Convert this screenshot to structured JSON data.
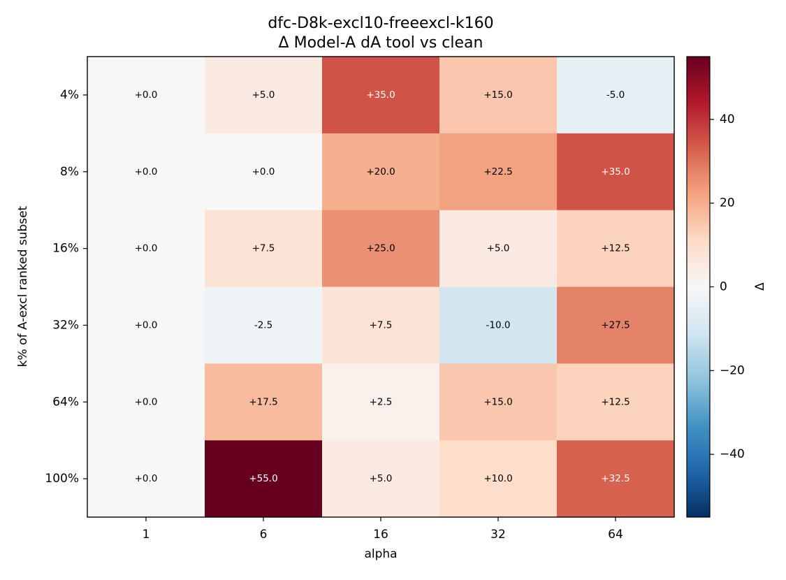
{
  "chart_data": {
    "type": "heatmap",
    "title": "dfc-D8k-excl10-freeexcl-k160",
    "subtitle": "Δ Model-A dA tool vs clean",
    "xlabel": "alpha",
    "ylabel": "k% of A-excl ranked subset",
    "x_categories": [
      "1",
      "6",
      "16",
      "32",
      "64"
    ],
    "y_categories": [
      "4%",
      "8%",
      "16%",
      "32%",
      "64%",
      "100%"
    ],
    "values": [
      [
        0.0,
        5.0,
        35.0,
        15.0,
        -5.0
      ],
      [
        0.0,
        0.0,
        20.0,
        22.5,
        35.0
      ],
      [
        0.0,
        7.5,
        25.0,
        5.0,
        12.5
      ],
      [
        0.0,
        -2.5,
        7.5,
        -10.0,
        27.5
      ],
      [
        0.0,
        17.5,
        2.5,
        15.0,
        12.5
      ],
      [
        0.0,
        55.0,
        5.0,
        10.0,
        32.5
      ]
    ],
    "cell_labels": [
      [
        "+0.0",
        "+5.0",
        "+35.0",
        "+15.0",
        "-5.0"
      ],
      [
        "+0.0",
        "+0.0",
        "+20.0",
        "+22.5",
        "+35.0"
      ],
      [
        "+0.0",
        "+7.5",
        "+25.0",
        "+5.0",
        "+12.5"
      ],
      [
        "+0.0",
        "-2.5",
        "+7.5",
        "-10.0",
        "+27.5"
      ],
      [
        "+0.0",
        "+17.5",
        "+2.5",
        "+15.0",
        "+12.5"
      ],
      [
        "+0.0",
        "+55.0",
        "+5.0",
        "+10.0",
        "+32.5"
      ]
    ],
    "colormap": "RdBu_r",
    "vmin": -55,
    "vmax": 55,
    "colorbar": {
      "label": "Δ",
      "ticks": [
        40,
        20,
        0,
        -20,
        -40
      ],
      "tick_labels": [
        "40",
        "20",
        "0",
        "−20",
        "−40"
      ]
    },
    "grid": false
  }
}
